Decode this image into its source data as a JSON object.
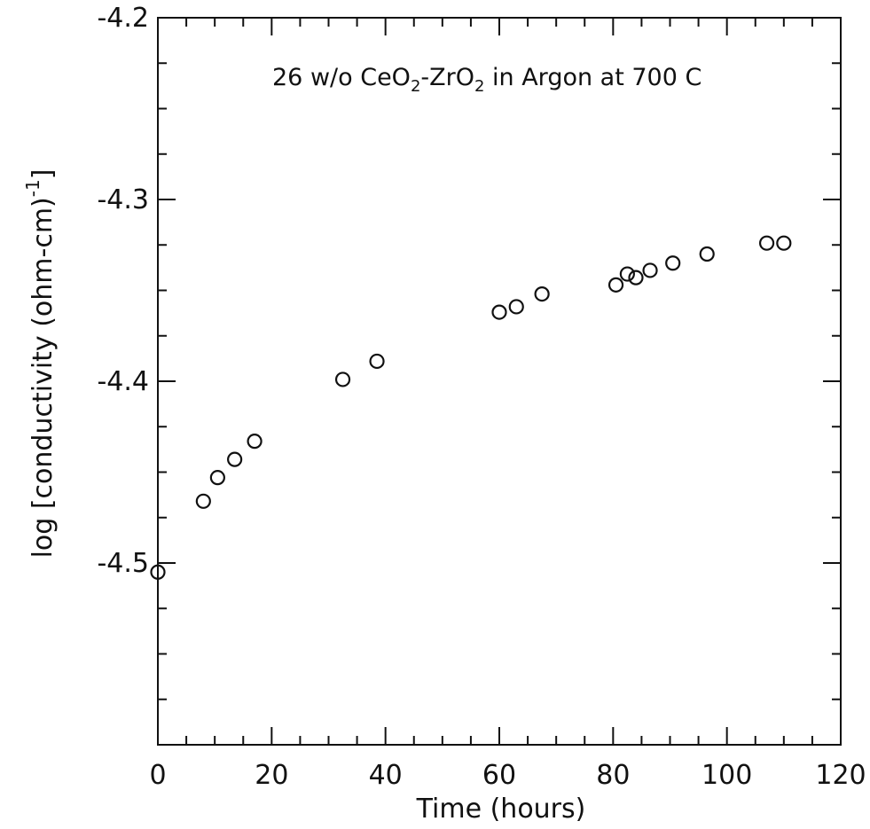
{
  "chart_data": {
    "type": "scatter",
    "annotation": {
      "parts": [
        {
          "text": "26 w/o CeO",
          "sub": false
        },
        {
          "text": "2",
          "sub": true
        },
        {
          "text": "-ZrO",
          "sub": false
        },
        {
          "text": "2",
          "sub": true
        },
        {
          "text": " in Argon at 700 C",
          "sub": false
        }
      ]
    },
    "xlabel": "Time (hours)",
    "ylabel": {
      "text": "log [conductivity (ohm-cm)",
      "superscript": "-1",
      "close": "]"
    },
    "xlim": [
      0,
      120
    ],
    "ylim": [
      -4.6,
      -4.2
    ],
    "xticks": [
      {
        "value": 0,
        "label": "0"
      },
      {
        "value": 20,
        "label": "20"
      },
      {
        "value": 40,
        "label": "40"
      },
      {
        "value": 60,
        "label": "60"
      },
      {
        "value": 80,
        "label": "80"
      },
      {
        "value": 100,
        "label": "100"
      },
      {
        "value": 120,
        "label": "120"
      }
    ],
    "yticks": [
      {
        "value": -4.2,
        "label": "-4.2"
      },
      {
        "value": -4.3,
        "label": "-4.3"
      },
      {
        "value": -4.4,
        "label": "-4.4"
      },
      {
        "value": -4.5,
        "label": "-4.5"
      }
    ],
    "x_minor_step": 5,
    "y_minor_step": 0.025,
    "marker": "open-circle",
    "marker_color": "#111111",
    "grid": false,
    "series": [
      {
        "points": [
          {
            "x": 0.0,
            "y": -4.505
          },
          {
            "x": 8.0,
            "y": -4.466
          },
          {
            "x": 10.5,
            "y": -4.453
          },
          {
            "x": 13.5,
            "y": -4.443
          },
          {
            "x": 17.0,
            "y": -4.433
          },
          {
            "x": 32.5,
            "y": -4.399
          },
          {
            "x": 38.5,
            "y": -4.389
          },
          {
            "x": 60.0,
            "y": -4.362
          },
          {
            "x": 63.0,
            "y": -4.359
          },
          {
            "x": 67.5,
            "y": -4.352
          },
          {
            "x": 80.5,
            "y": -4.347
          },
          {
            "x": 82.5,
            "y": -4.341
          },
          {
            "x": 84.0,
            "y": -4.343
          },
          {
            "x": 86.5,
            "y": -4.339
          },
          {
            "x": 90.5,
            "y": -4.335
          },
          {
            "x": 96.5,
            "y": -4.33
          },
          {
            "x": 107.0,
            "y": -4.324
          },
          {
            "x": 110.0,
            "y": -4.324
          }
        ]
      }
    ]
  }
}
